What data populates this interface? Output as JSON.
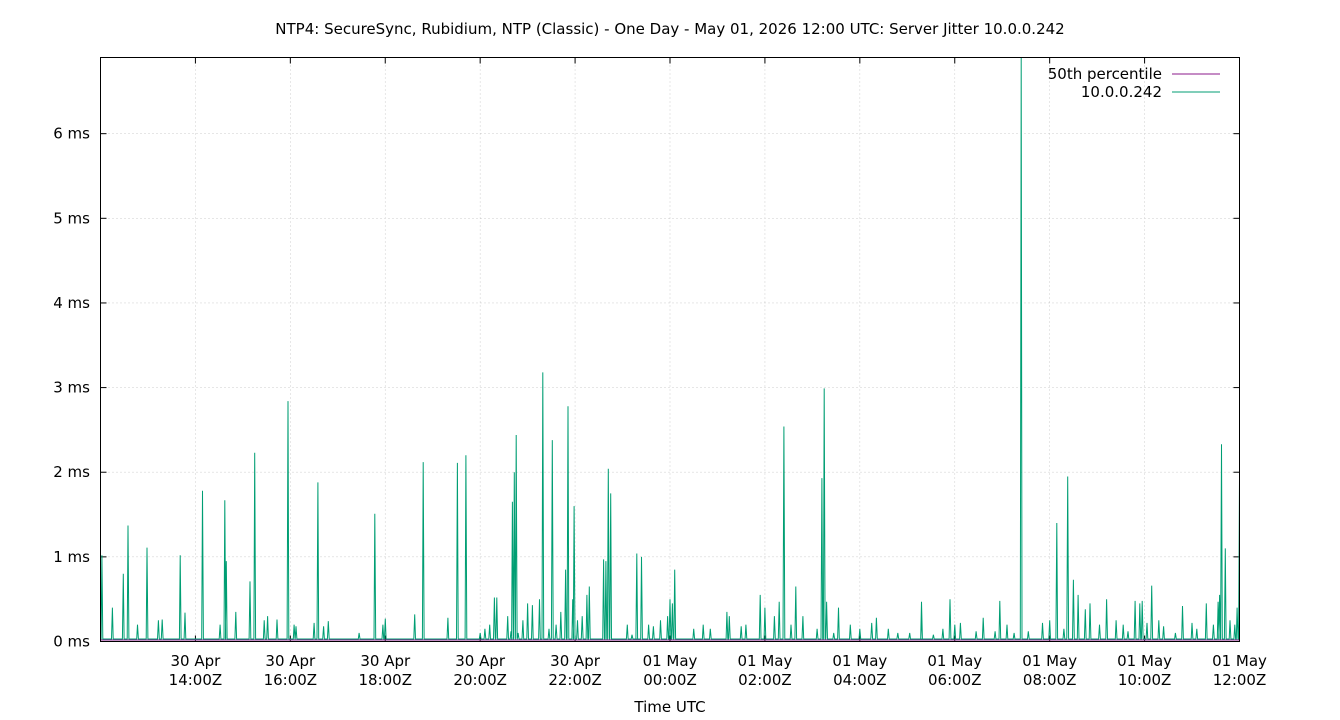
{
  "chart_data": {
    "type": "line",
    "title": "NTP4: SecureSync, Rubidium, NTP (Classic) - One Day - May 01, 2026 12:00 UTC: Server Jitter 10.0.0.242",
    "xlabel": "Time UTC",
    "ylabel": "",
    "x_range_hours": [
      "30 Apr 12:00Z",
      "01 May 12:00Z"
    ],
    "xlim_hours": [
      12,
      36
    ],
    "ylim": [
      0,
      6.9
    ],
    "y_unit": "ms",
    "y_ticks": [
      {
        "value": 0,
        "label": "0 ms"
      },
      {
        "value": 1,
        "label": "1 ms"
      },
      {
        "value": 2,
        "label": "2 ms"
      },
      {
        "value": 3,
        "label": "3 ms"
      },
      {
        "value": 4,
        "label": "4 ms"
      },
      {
        "value": 5,
        "label": "5 ms"
      },
      {
        "value": 6,
        "label": "6 ms"
      }
    ],
    "x_ticks": [
      {
        "hour": 14,
        "line1": "30 Apr",
        "line2": "14:00Z"
      },
      {
        "hour": 16,
        "line1": "30 Apr",
        "line2": "16:00Z"
      },
      {
        "hour": 18,
        "line1": "30 Apr",
        "line2": "18:00Z"
      },
      {
        "hour": 20,
        "line1": "30 Apr",
        "line2": "20:00Z"
      },
      {
        "hour": 22,
        "line1": "30 Apr",
        "line2": "22:00Z"
      },
      {
        "hour": 24,
        "line1": "01 May",
        "line2": "00:00Z"
      },
      {
        "hour": 26,
        "line1": "01 May",
        "line2": "02:00Z"
      },
      {
        "hour": 28,
        "line1": "01 May",
        "line2": "04:00Z"
      },
      {
        "hour": 30,
        "line1": "01 May",
        "line2": "06:00Z"
      },
      {
        "hour": 32,
        "line1": "01 May",
        "line2": "08:00Z"
      },
      {
        "hour": 34,
        "line1": "01 May",
        "line2": "10:00Z"
      },
      {
        "hour": 36,
        "line1": "01 May",
        "line2": "12:00Z"
      }
    ],
    "grid": true,
    "legend_position": "top-right",
    "series": [
      {
        "name": "50th percentile",
        "color": "#8b1a8b",
        "points": [
          [
            12,
            0.018
          ],
          [
            36,
            0.018
          ]
        ]
      },
      {
        "name": "10.0.0.242",
        "color": "#009e73",
        "baseline": 0.03,
        "spikes": [
          [
            12.03,
            1.02
          ],
          [
            12.25,
            0.4
          ],
          [
            12.48,
            0.8
          ],
          [
            12.58,
            1.37
          ],
          [
            12.78,
            0.2
          ],
          [
            12.98,
            1.11
          ],
          [
            13.22,
            0.25
          ],
          [
            13.3,
            0.26
          ],
          [
            13.68,
            1.02
          ],
          [
            13.78,
            0.34
          ],
          [
            14.15,
            1.78
          ],
          [
            14.52,
            0.2
          ],
          [
            14.62,
            1.67
          ],
          [
            14.65,
            0.95
          ],
          [
            14.85,
            0.35
          ],
          [
            15.15,
            0.71
          ],
          [
            15.25,
            2.23
          ],
          [
            15.45,
            0.25
          ],
          [
            15.52,
            0.3
          ],
          [
            15.72,
            0.26
          ],
          [
            15.95,
            2.84
          ],
          [
            16.08,
            0.2
          ],
          [
            16.12,
            0.18
          ],
          [
            16.5,
            0.22
          ],
          [
            16.58,
            1.88
          ],
          [
            16.7,
            0.18
          ],
          [
            16.8,
            0.24
          ],
          [
            17.45,
            0.1
          ],
          [
            17.78,
            1.51
          ],
          [
            17.95,
            0.2
          ],
          [
            18.0,
            0.27
          ],
          [
            18.62,
            0.32
          ],
          [
            18.8,
            2.12
          ],
          [
            19.32,
            0.28
          ],
          [
            19.52,
            2.11
          ],
          [
            19.7,
            2.2
          ],
          [
            20.0,
            0.1
          ],
          [
            20.1,
            0.15
          ],
          [
            20.2,
            0.2
          ],
          [
            20.3,
            0.52
          ],
          [
            20.35,
            0.52
          ],
          [
            20.58,
            0.3
          ],
          [
            20.65,
            0.12
          ],
          [
            20.68,
            1.65
          ],
          [
            20.72,
            2.0
          ],
          [
            20.76,
            2.44
          ],
          [
            20.8,
            0.1
          ],
          [
            20.9,
            0.25
          ],
          [
            21.0,
            0.45
          ],
          [
            21.1,
            0.43
          ],
          [
            21.25,
            0.5
          ],
          [
            21.32,
            3.18
          ],
          [
            21.45,
            0.15
          ],
          [
            21.52,
            2.38
          ],
          [
            21.6,
            0.2
          ],
          [
            21.7,
            0.35
          ],
          [
            21.8,
            0.85
          ],
          [
            21.85,
            2.78
          ],
          [
            21.95,
            0.5
          ],
          [
            21.98,
            1.6
          ],
          [
            22.05,
            0.25
          ],
          [
            22.15,
            0.3
          ],
          [
            22.25,
            0.55
          ],
          [
            22.3,
            0.65
          ],
          [
            22.6,
            0.97
          ],
          [
            22.65,
            0.95
          ],
          [
            22.7,
            2.04
          ],
          [
            22.75,
            1.75
          ],
          [
            23.1,
            0.2
          ],
          [
            23.3,
            0.98
          ],
          [
            23.3,
            1.04
          ],
          [
            23.2,
            0.08
          ],
          [
            23.4,
            1.0
          ],
          [
            23.55,
            0.2
          ],
          [
            23.65,
            0.18
          ],
          [
            23.8,
            0.25
          ],
          [
            23.95,
            0.3
          ],
          [
            24.0,
            0.5
          ],
          [
            24.05,
            0.45
          ],
          [
            24.1,
            0.85
          ],
          [
            24.5,
            0.15
          ],
          [
            24.7,
            0.2
          ],
          [
            24.85,
            0.15
          ],
          [
            25.2,
            0.35
          ],
          [
            25.25,
            0.3
          ],
          [
            25.5,
            0.18
          ],
          [
            25.6,
            0.2
          ],
          [
            25.9,
            0.55
          ],
          [
            26.0,
            0.4
          ],
          [
            26.2,
            0.3
          ],
          [
            26.3,
            0.47
          ],
          [
            26.4,
            2.54
          ],
          [
            26.55,
            0.2
          ],
          [
            26.65,
            0.65
          ],
          [
            26.8,
            0.3
          ],
          [
            27.1,
            0.15
          ],
          [
            27.2,
            1.93
          ],
          [
            27.25,
            2.99
          ],
          [
            27.3,
            0.47
          ],
          [
            27.45,
            0.1
          ],
          [
            27.55,
            0.4
          ],
          [
            27.8,
            0.2
          ],
          [
            28.0,
            0.15
          ],
          [
            28.25,
            0.22
          ],
          [
            28.35,
            0.28
          ],
          [
            28.6,
            0.15
          ],
          [
            28.8,
            0.1
          ],
          [
            29.05,
            0.1
          ],
          [
            29.3,
            0.3
          ],
          [
            29.3,
            0.47
          ],
          [
            29.55,
            0.08
          ],
          [
            29.75,
            0.15
          ],
          [
            29.9,
            0.5
          ],
          [
            30.0,
            0.2
          ],
          [
            30.12,
            0.22
          ],
          [
            30.45,
            0.12
          ],
          [
            30.6,
            0.28
          ],
          [
            30.85,
            0.12
          ],
          [
            30.95,
            0.48
          ],
          [
            31.1,
            0.2
          ],
          [
            31.25,
            0.1
          ],
          [
            31.4,
            6.9
          ],
          [
            31.55,
            0.12
          ],
          [
            31.85,
            0.22
          ],
          [
            32.0,
            0.25
          ],
          [
            32.15,
            1.4
          ],
          [
            32.3,
            0.15
          ],
          [
            32.38,
            1.95
          ],
          [
            32.5,
            0.73
          ],
          [
            32.6,
            0.55
          ],
          [
            32.75,
            0.38
          ],
          [
            32.85,
            0.45
          ],
          [
            33.05,
            0.2
          ],
          [
            33.2,
            0.5
          ],
          [
            33.4,
            0.25
          ],
          [
            33.55,
            0.2
          ],
          [
            33.65,
            0.12
          ],
          [
            33.8,
            0.48
          ],
          [
            33.9,
            0.45
          ],
          [
            33.95,
            0.48
          ],
          [
            34.05,
            0.22
          ],
          [
            34.15,
            0.66
          ],
          [
            34.3,
            0.25
          ],
          [
            34.4,
            0.18
          ],
          [
            34.65,
            0.1
          ],
          [
            34.8,
            0.42
          ],
          [
            35.0,
            0.22
          ],
          [
            35.1,
            0.15
          ],
          [
            35.3,
            0.45
          ],
          [
            35.45,
            0.2
          ],
          [
            35.55,
            0.47
          ],
          [
            35.58,
            0.55
          ],
          [
            35.62,
            2.33
          ],
          [
            35.7,
            1.1
          ],
          [
            35.8,
            0.25
          ],
          [
            35.9,
            0.2
          ],
          [
            35.95,
            0.4
          ],
          [
            36.0,
            1.93
          ]
        ]
      }
    ]
  }
}
